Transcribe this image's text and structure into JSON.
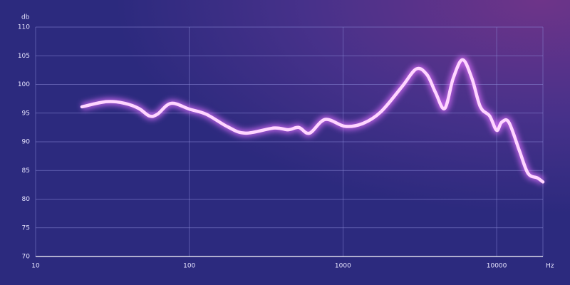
{
  "chart_data": {
    "type": "line",
    "y_label": "db",
    "x_label": "Hz",
    "x": [
      20,
      29,
      38,
      47,
      55,
      62,
      76,
      100,
      129,
      178,
      232,
      356,
      440,
      516,
      605,
      766,
      1030,
      1349,
      1760,
      2420,
      3000,
      3520,
      4000,
      4590,
      5220,
      6000,
      6890,
      7830,
      9000,
      10000,
      10770,
      12000,
      14080,
      16000,
      18400,
      20000
    ],
    "series": [
      {
        "color": "#ffd6ff",
        "values": [
          96.1,
          97.0,
          96.7,
          95.8,
          94.5,
          94.8,
          96.7,
          95.7,
          94.8,
          92.6,
          91.5,
          92.4,
          92.1,
          92.5,
          91.5,
          93.9,
          92.7,
          93.2,
          95.2,
          99.6,
          102.7,
          101.7,
          98.6,
          95.8,
          101.1,
          104.3,
          101.1,
          96.1,
          94.5,
          92.0,
          93.4,
          93.4,
          88.4,
          84.5,
          83.7,
          83.0
        ]
      }
    ],
    "xlim": [
      10,
      20000
    ],
    "xticks": [
      10,
      100,
      1000,
      10000
    ],
    "xscale": "log",
    "ylim": [
      70,
      110
    ],
    "yticks": [
      70,
      75,
      80,
      85,
      90,
      95,
      100,
      105,
      110
    ],
    "grid": true
  }
}
